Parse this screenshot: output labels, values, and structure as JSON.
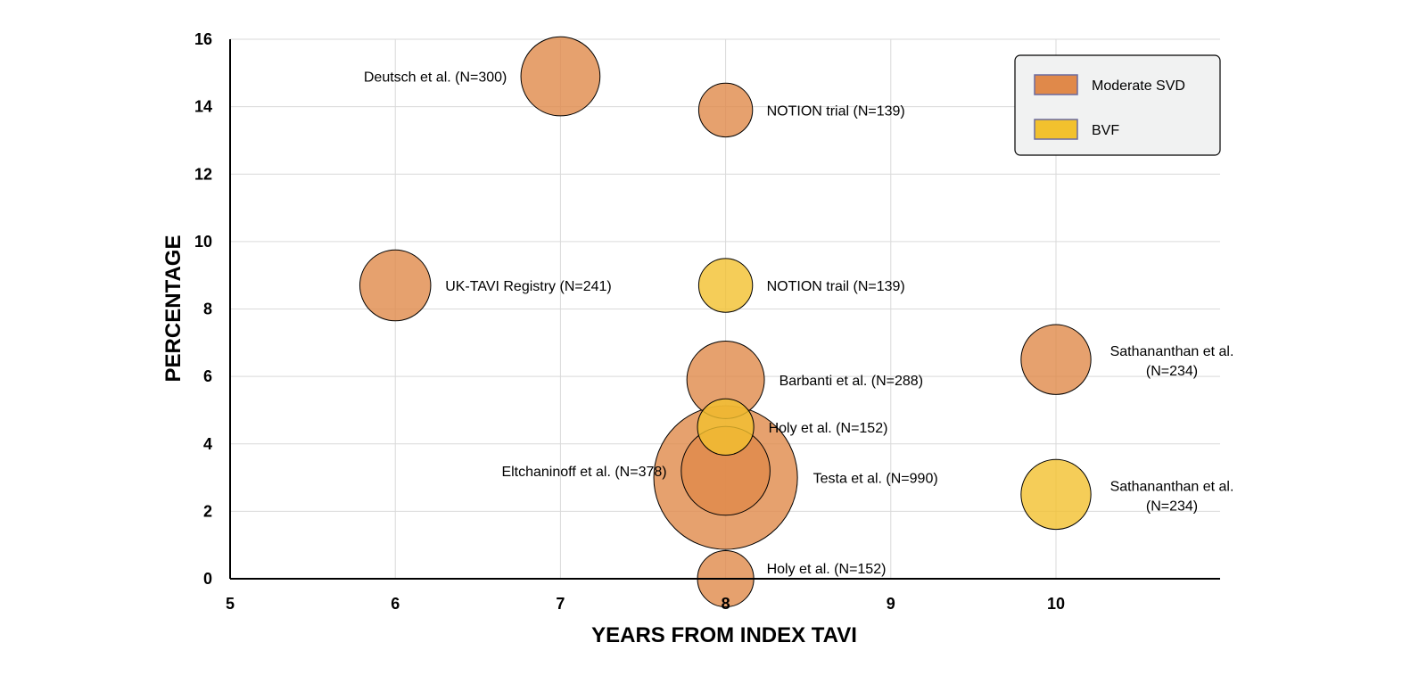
{
  "chart_data": {
    "type": "bubble",
    "title": "",
    "xlabel": "YEARS FROM INDEX TAVI",
    "ylabel": "PERCENTAGE",
    "xlim": [
      5,
      11
    ],
    "ylim": [
      0,
      16
    ],
    "xticks": [
      5,
      6,
      7,
      8,
      9,
      10
    ],
    "yticks": [
      0,
      2,
      4,
      6,
      8,
      10,
      12,
      14,
      16
    ],
    "grid": true,
    "legend_position": "top-right",
    "series": [
      {
        "name": "Moderate SVD",
        "color": "#E0894A",
        "points": [
          {
            "x": 7,
            "y": 14.9,
            "n": 300,
            "label": "Deutsch et al. (N=300)"
          },
          {
            "x": 8,
            "y": 13.9,
            "n": 139,
            "label": "NOTION trial (N=139)"
          },
          {
            "x": 6,
            "y": 8.7,
            "n": 241,
            "label": "UK-TAVI Registry (N=241)"
          },
          {
            "x": 8,
            "y": 5.9,
            "n": 288,
            "label": "Barbanti et al. (N=288)"
          },
          {
            "x": 10,
            "y": 6.5,
            "n": 234,
            "label": "Sathananthan et al. (N=234)"
          },
          {
            "x": 8,
            "y": 3.0,
            "n": 990,
            "label": "Testa et al. (N=990)"
          },
          {
            "x": 8,
            "y": 3.2,
            "n": 378,
            "label": "Eltchaninoff et al. (N=378)"
          },
          {
            "x": 8,
            "y": 0.0,
            "n": 152,
            "label": "Holy et al. (N=152)"
          }
        ]
      },
      {
        "name": "BVF",
        "color": "#F2C12E",
        "points": [
          {
            "x": 8,
            "y": 8.7,
            "n": 139,
            "label": "NOTION trail (N=139)"
          },
          {
            "x": 8,
            "y": 4.5,
            "n": 152,
            "label": "Holy et al. (N=152)"
          },
          {
            "x": 10,
            "y": 2.5,
            "n": 234,
            "label": "Sathananthan et al. (N=234)"
          }
        ]
      }
    ]
  }
}
